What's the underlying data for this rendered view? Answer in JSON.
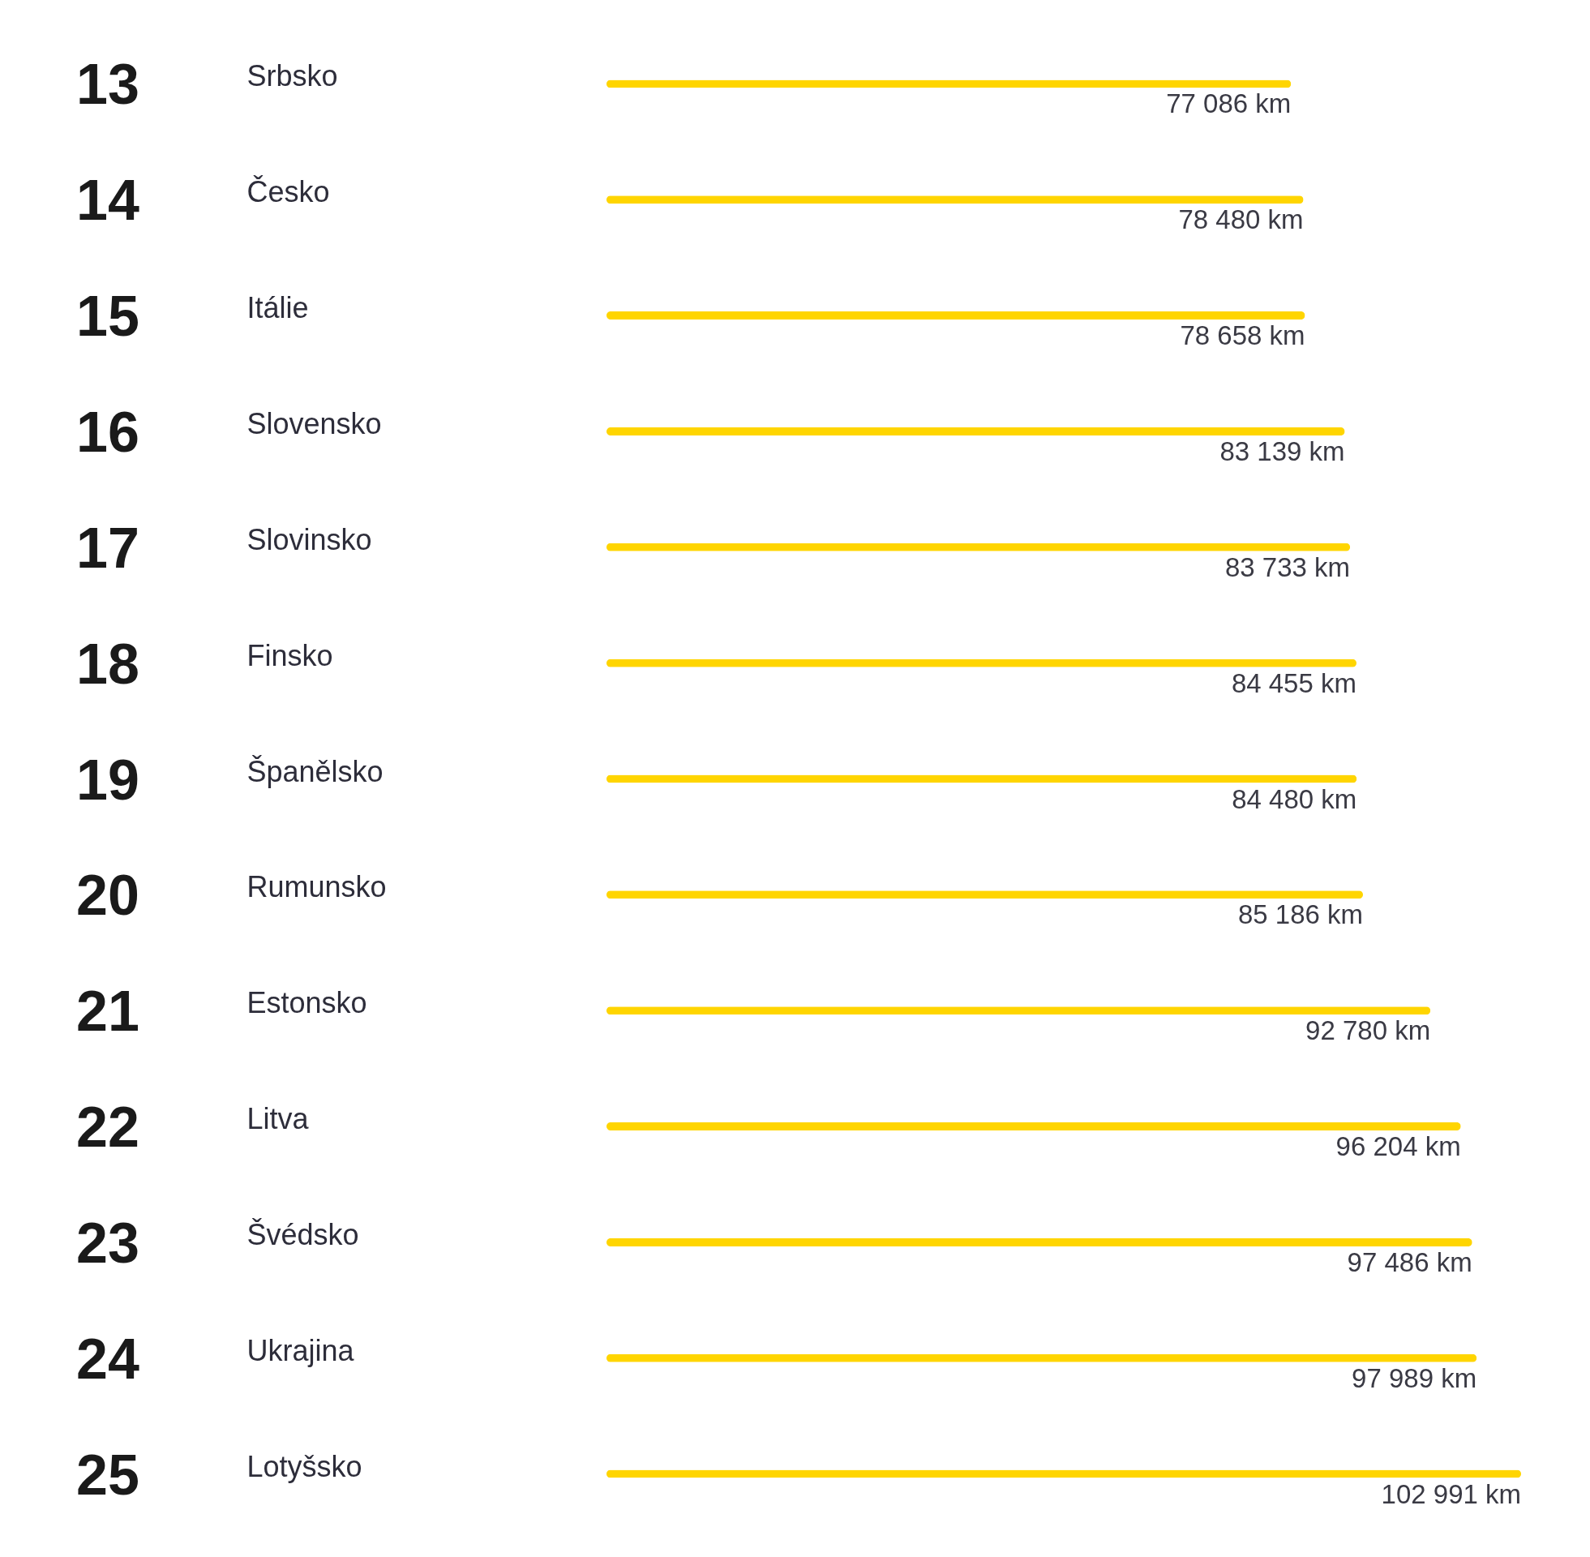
{
  "chart_data": {
    "type": "bar",
    "orientation": "horizontal",
    "categories": [
      "Srbsko",
      "Česko",
      "Itálie",
      "Slovensko",
      "Slovinsko",
      "Finsko",
      "Španělsko",
      "Rumunsko",
      "Estonsko",
      "Litva",
      "Švédsko",
      "Ukrajina",
      "Lotyšsko"
    ],
    "y2_categories": [
      "13",
      "14",
      "15",
      "16",
      "17",
      "18",
      "19",
      "20",
      "21",
      "22",
      "23",
      "24",
      "25"
    ],
    "values": [
      77086,
      78480,
      78658,
      83139,
      83733,
      84455,
      84480,
      85186,
      92780,
      96204,
      97486,
      97989,
      102991
    ],
    "value_labels": [
      "77 086 km",
      "78 480 km",
      "78 658 km",
      "83 139 km",
      "83 733 km",
      "84 455 km",
      "84 480 km",
      "85 186 km",
      "92 780 km",
      "96 204 km",
      "97 486 km",
      "97 989 km",
      "102 991 km"
    ],
    "color": "#ffd500",
    "tick_labels": "y"
  }
}
